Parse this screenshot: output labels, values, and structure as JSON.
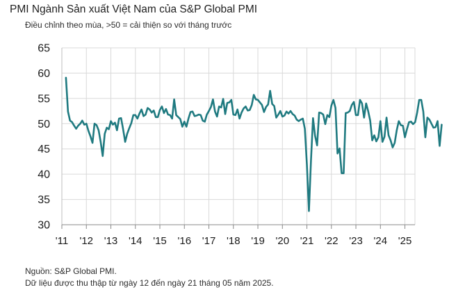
{
  "chart_data": {
    "type": "line",
    "title": "PMI Ngành Sản xuất Việt Nam của S&P Global PMI",
    "subtitle": "Điều chỉnh theo mùa, >50 = cải thiện so với tháng trước",
    "xlabel": "",
    "ylabel": "",
    "ylim": [
      30,
      65
    ],
    "yticks": [
      "65",
      "60",
      "55",
      "50",
      "45",
      "40",
      "35",
      "30"
    ],
    "xticks": [
      "'11",
      "'12",
      "'13",
      "'14",
      "'15",
      "'16",
      "'17",
      "'18",
      "'19",
      "'20",
      "'21",
      "'22",
      "'23",
      "'24",
      "'25"
    ],
    "grid": true,
    "line_color": "#1f7a80",
    "series": [
      {
        "x_start": "2011-03",
        "frequency": "monthly",
        "values": [
          59.1,
          52.4,
          50.6,
          50.3,
          49.6,
          49.0,
          49.6,
          50.0,
          50.6,
          49.8,
          50.0,
          48.6,
          47.5,
          46.2,
          50.0,
          49.7,
          48.7,
          46.4,
          43.6,
          48.0,
          49.2,
          48.9,
          50.5,
          49.8,
          50.2,
          48.7,
          51.0,
          51.1,
          48.9,
          46.4,
          48.0,
          49.1,
          50.1,
          51.7,
          51.7,
          51.0,
          52.0,
          52.8,
          51.5,
          51.8,
          53.1,
          52.8,
          52.2,
          52.6,
          51.3,
          51.3,
          52.7,
          53.4,
          52.1,
          52.9,
          51.8,
          51.7,
          51.0,
          54.8,
          51.7,
          51.3,
          50.9,
          49.4,
          50.4,
          49.4,
          51.0,
          52.3,
          52.4,
          51.5,
          51.6,
          51.8,
          51.7,
          50.6,
          50.4,
          51.8,
          52.5,
          53.3,
          54.8,
          52.4,
          51.4,
          53.4,
          53.2,
          54.9,
          51.9,
          54.1,
          54.2,
          54.7,
          51.8,
          51.7,
          52.8,
          51.0,
          52.2,
          53.0,
          53.4,
          52.6,
          52.7,
          53.7,
          55.7,
          54.8,
          54.7,
          54.2,
          53.7,
          52.3,
          53.3,
          53.8,
          56.5,
          53.9,
          53.5,
          51.2,
          51.8,
          52.5,
          51.4,
          51.6,
          52.4,
          52.0,
          52.5,
          51.9,
          51.6,
          50.8,
          50.5,
          50.8,
          51.0,
          49.0,
          41.9,
          32.7,
          42.7,
          51.1,
          47.6,
          45.7,
          52.2,
          52.1,
          51.8,
          49.9,
          51.7,
          51.3,
          53.6,
          54.7,
          53.1,
          44.1,
          45.1,
          40.2,
          40.2,
          52.1,
          52.2,
          52.5,
          53.7,
          54.3,
          51.7,
          51.7,
          54.7,
          54.0,
          51.2,
          54.0,
          52.5,
          50.6,
          46.7,
          47.7,
          46.5,
          47.3,
          50.5,
          46.4,
          47.4,
          51.2,
          47.7,
          46.7,
          45.3,
          46.2,
          48.7,
          50.5,
          49.7,
          49.6,
          47.3,
          48.9,
          50.3,
          50.4,
          49.9,
          50.3,
          52.2,
          54.7,
          54.7,
          52.4,
          47.3,
          51.2,
          50.8,
          50.0,
          49.2,
          49.3,
          50.5,
          45.6,
          49.8
        ]
      }
    ]
  },
  "source_note": "Nguồn: S&P Global PMI.",
  "collection_note": "Dữ liệu được thu thập từ ngày 12 đến ngày 21 tháng 05 năm 2025."
}
